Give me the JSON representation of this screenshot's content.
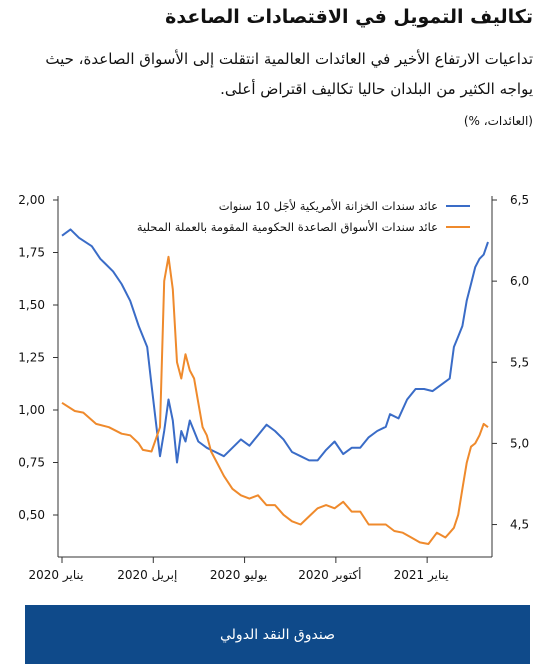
{
  "header": {
    "title": "تكاليف التمويل في الاقتصادات الصاعدة",
    "subtitle": "تداعيات الارتفاع الأخير في العائدات العالمية انتقلت إلى الأسواق الصاعدة، حيث يواجه الكثير من البلدان حاليا تكاليف اقتراض أعلى.",
    "units": "(العائدات، %)"
  },
  "footer": {
    "label": "صندوق النقد الدولي"
  },
  "colors": {
    "us_treasury": "#3a6cc7",
    "em_local": "#ef8a2c",
    "footer_bg": "#0f4a8a"
  },
  "chart_data": {
    "type": "line",
    "xlabels": [
      "يناير 2020",
      "إبريل 2020",
      "يوليو 2020",
      "أكتوبر 2020",
      "يناير 2021"
    ],
    "x_range": [
      "2020-01",
      "2021-03"
    ],
    "left_axis": {
      "ticks": [
        "0,50",
        "0,75",
        "1,00",
        "1,25",
        "1,50",
        "1,75",
        "2,00"
      ],
      "ylim": [
        0.3,
        2.0
      ]
    },
    "right_axis": {
      "ticks": [
        "4,5",
        "5,0",
        "5,5",
        "6,0",
        "6,5"
      ],
      "ylim": [
        4.3,
        6.5
      ]
    },
    "series": [
      {
        "name": "عائد سندات الخزانة الأمريكية لأجَل 10 سنوات",
        "axis": "left",
        "values": [
          [
            0.0,
            1.83
          ],
          [
            0.02,
            1.86
          ],
          [
            0.04,
            1.82
          ],
          [
            0.07,
            1.78
          ],
          [
            0.09,
            1.72
          ],
          [
            0.1,
            1.7
          ],
          [
            0.12,
            1.66
          ],
          [
            0.14,
            1.6
          ],
          [
            0.16,
            1.52
          ],
          [
            0.18,
            1.4
          ],
          [
            0.2,
            1.3
          ],
          [
            0.21,
            1.12
          ],
          [
            0.22,
            0.95
          ],
          [
            0.23,
            0.78
          ],
          [
            0.24,
            0.9
          ],
          [
            0.25,
            1.05
          ],
          [
            0.26,
            0.95
          ],
          [
            0.27,
            0.75
          ],
          [
            0.28,
            0.9
          ],
          [
            0.29,
            0.85
          ],
          [
            0.3,
            0.95
          ],
          [
            0.32,
            0.85
          ],
          [
            0.34,
            0.82
          ],
          [
            0.36,
            0.8
          ],
          [
            0.38,
            0.78
          ],
          [
            0.4,
            0.82
          ],
          [
            0.42,
            0.86
          ],
          [
            0.44,
            0.83
          ],
          [
            0.46,
            0.88
          ],
          [
            0.48,
            0.93
          ],
          [
            0.5,
            0.9
          ],
          [
            0.52,
            0.86
          ],
          [
            0.54,
            0.8
          ],
          [
            0.56,
            0.78
          ],
          [
            0.58,
            0.76
          ],
          [
            0.6,
            0.76
          ],
          [
            0.62,
            0.81
          ],
          [
            0.64,
            0.85
          ],
          [
            0.66,
            0.79
          ],
          [
            0.68,
            0.82
          ],
          [
            0.7,
            0.82
          ],
          [
            0.72,
            0.87
          ],
          [
            0.74,
            0.9
          ],
          [
            0.76,
            0.92
          ],
          [
            0.77,
            0.98
          ],
          [
            0.79,
            0.96
          ],
          [
            0.81,
            1.05
          ],
          [
            0.83,
            1.1
          ],
          [
            0.85,
            1.1
          ],
          [
            0.87,
            1.09
          ],
          [
            0.89,
            1.12
          ],
          [
            0.91,
            1.15
          ],
          [
            0.92,
            1.3
          ],
          [
            0.93,
            1.35
          ],
          [
            0.94,
            1.4
          ],
          [
            0.95,
            1.52
          ],
          [
            0.96,
            1.6
          ],
          [
            0.97,
            1.68
          ],
          [
            0.98,
            1.72
          ],
          [
            0.99,
            1.74
          ],
          [
            1.0,
            1.8
          ]
        ]
      },
      {
        "name": "عائد سندات الأسواق الصاعدة الحكومية المقومة بالعملة المحلية",
        "axis": "right",
        "values": [
          [
            0.0,
            5.25
          ],
          [
            0.03,
            5.2
          ],
          [
            0.05,
            5.19
          ],
          [
            0.08,
            5.12
          ],
          [
            0.11,
            5.1
          ],
          [
            0.14,
            5.06
          ],
          [
            0.16,
            5.05
          ],
          [
            0.18,
            5.0
          ],
          [
            0.19,
            4.96
          ],
          [
            0.21,
            4.95
          ],
          [
            0.23,
            5.1
          ],
          [
            0.24,
            6.0
          ],
          [
            0.25,
            6.15
          ],
          [
            0.26,
            5.95
          ],
          [
            0.27,
            5.5
          ],
          [
            0.28,
            5.4
          ],
          [
            0.29,
            5.55
          ],
          [
            0.3,
            5.45
          ],
          [
            0.31,
            5.4
          ],
          [
            0.32,
            5.25
          ],
          [
            0.33,
            5.1
          ],
          [
            0.34,
            5.05
          ],
          [
            0.35,
            4.95
          ],
          [
            0.36,
            4.9
          ],
          [
            0.38,
            4.8
          ],
          [
            0.4,
            4.72
          ],
          [
            0.42,
            4.68
          ],
          [
            0.44,
            4.66
          ],
          [
            0.46,
            4.68
          ],
          [
            0.48,
            4.62
          ],
          [
            0.5,
            4.62
          ],
          [
            0.52,
            4.56
          ],
          [
            0.54,
            4.52
          ],
          [
            0.56,
            4.5
          ],
          [
            0.58,
            4.55
          ],
          [
            0.6,
            4.6
          ],
          [
            0.62,
            4.62
          ],
          [
            0.64,
            4.6
          ],
          [
            0.66,
            4.64
          ],
          [
            0.68,
            4.58
          ],
          [
            0.7,
            4.58
          ],
          [
            0.72,
            4.5
          ],
          [
            0.74,
            4.5
          ],
          [
            0.76,
            4.5
          ],
          [
            0.78,
            4.46
          ],
          [
            0.8,
            4.45
          ],
          [
            0.82,
            4.42
          ],
          [
            0.84,
            4.39
          ],
          [
            0.86,
            4.38
          ],
          [
            0.88,
            4.45
          ],
          [
            0.9,
            4.42
          ],
          [
            0.91,
            4.45
          ],
          [
            0.92,
            4.48
          ],
          [
            0.93,
            4.56
          ],
          [
            0.94,
            4.72
          ],
          [
            0.95,
            4.88
          ],
          [
            0.96,
            4.98
          ],
          [
            0.97,
            5.0
          ],
          [
            0.98,
            5.05
          ],
          [
            0.99,
            5.12
          ],
          [
            1.0,
            5.1
          ]
        ]
      }
    ]
  }
}
